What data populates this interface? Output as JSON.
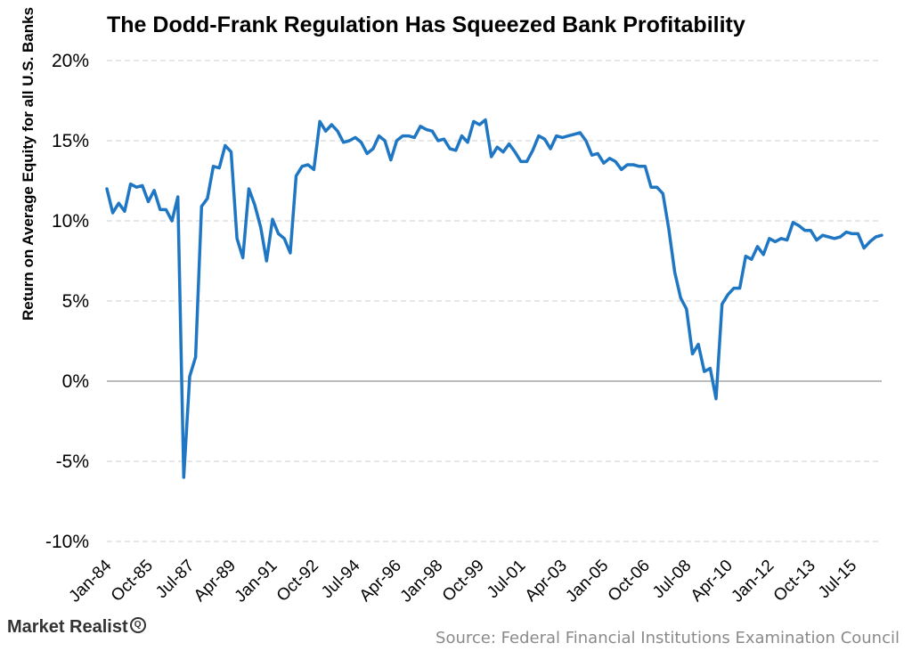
{
  "chart_data": {
    "type": "line",
    "title": "The Dodd-Frank Regulation Has Squeezed Bank Profitability",
    "xlabel": "",
    "ylabel": "Return on Average Equity for all U.S. Banks",
    "ylim": [
      -10,
      20
    ],
    "yticks": [
      "20%",
      "15%",
      "10%",
      "5%",
      "0%",
      "-5%",
      "-10%"
    ],
    "ytick_values": [
      20,
      15,
      10,
      5,
      0,
      -5,
      -10
    ],
    "xticks": [
      "Jan-84",
      "Oct-85",
      "Jul-87",
      "Apr-89",
      "Jan-91",
      "Oct-92",
      "Jul-94",
      "Apr-96",
      "Jan-98",
      "Oct-99",
      "Jul-01",
      "Apr-03",
      "Jan-05",
      "Oct-06",
      "Jul-08",
      "Apr-10",
      "Jan-12",
      "Oct-13",
      "Jul-15"
    ],
    "grid": true,
    "line_color": "#1f77c4",
    "series": [
      {
        "values": [
          12.0,
          10.5,
          11.1,
          10.6,
          12.3,
          12.1,
          12.2,
          11.2,
          11.9,
          10.7,
          10.7,
          10.0,
          11.5,
          -6.0,
          0.3,
          1.5,
          10.9,
          11.4,
          13.4,
          13.3,
          14.7,
          14.3,
          8.9,
          7.7,
          12.0,
          11.0,
          9.6,
          7.5,
          10.1,
          9.2,
          8.9,
          8.0,
          12.8,
          13.4,
          13.5,
          13.2,
          16.2,
          15.6,
          16.0,
          15.6,
          14.9,
          15.0,
          15.2,
          14.9,
          14.2,
          14.5,
          15.3,
          15.0,
          13.8,
          15.0,
          15.3,
          15.3,
          15.2,
          15.9,
          15.7,
          15.6,
          15.0,
          15.1,
          14.5,
          14.4,
          15.3,
          14.9,
          16.2,
          16.0,
          16.3,
          14.0,
          14.6,
          14.3,
          14.8,
          14.3,
          13.7,
          13.7,
          14.4,
          15.3,
          15.1,
          14.5,
          15.3,
          15.2,
          15.3,
          15.4,
          15.5,
          15.0,
          14.1,
          14.2,
          13.6,
          13.9,
          13.7,
          13.2,
          13.5,
          13.5,
          13.4,
          13.4,
          12.1,
          12.1,
          11.7,
          9.5,
          6.8,
          5.2,
          4.5,
          1.7,
          2.3,
          0.6,
          0.8,
          -1.1,
          4.8,
          5.4,
          5.8,
          5.8,
          7.8,
          7.6,
          8.4,
          7.9,
          8.9,
          8.7,
          8.9,
          8.8,
          9.9,
          9.7,
          9.4,
          9.4,
          8.8,
          9.1,
          9.0,
          8.9,
          9.0,
          9.3,
          9.2,
          9.2,
          8.3,
          8.7,
          9.0,
          9.1
        ]
      }
    ]
  },
  "footer": {
    "brand": "Market Realist",
    "brand_mark": "Q",
    "source": "Source: Federal Financial Institutions Examination Council"
  }
}
